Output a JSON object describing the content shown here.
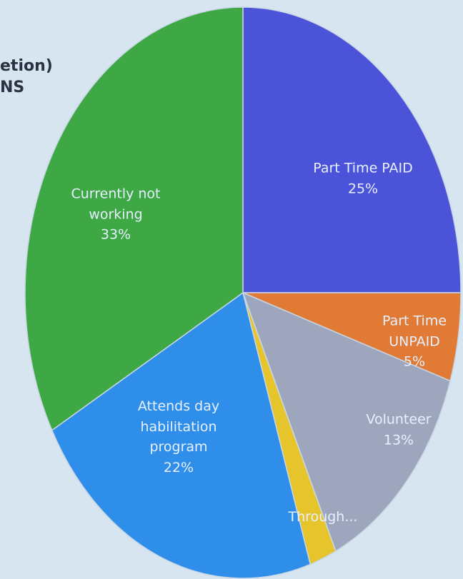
{
  "chart_data": {
    "type": "pie",
    "annotations": [
      "etion)",
      "NS"
    ],
    "categories": [
      "Part Time PAID",
      "Part Time UNPAID",
      "Volunteer",
      "Through...",
      "Attends day habilitation program",
      "Currently not working"
    ],
    "values": [
      25,
      5,
      13,
      2,
      22,
      33
    ],
    "value_labels": [
      "25%",
      "5%",
      "13%",
      null,
      "22%",
      "33%"
    ],
    "colors": [
      "#4b54d9",
      "#e07a35",
      "#9ea6bd",
      "#e6c52c",
      "#2f8ee9",
      "#3ea845"
    ]
  }
}
